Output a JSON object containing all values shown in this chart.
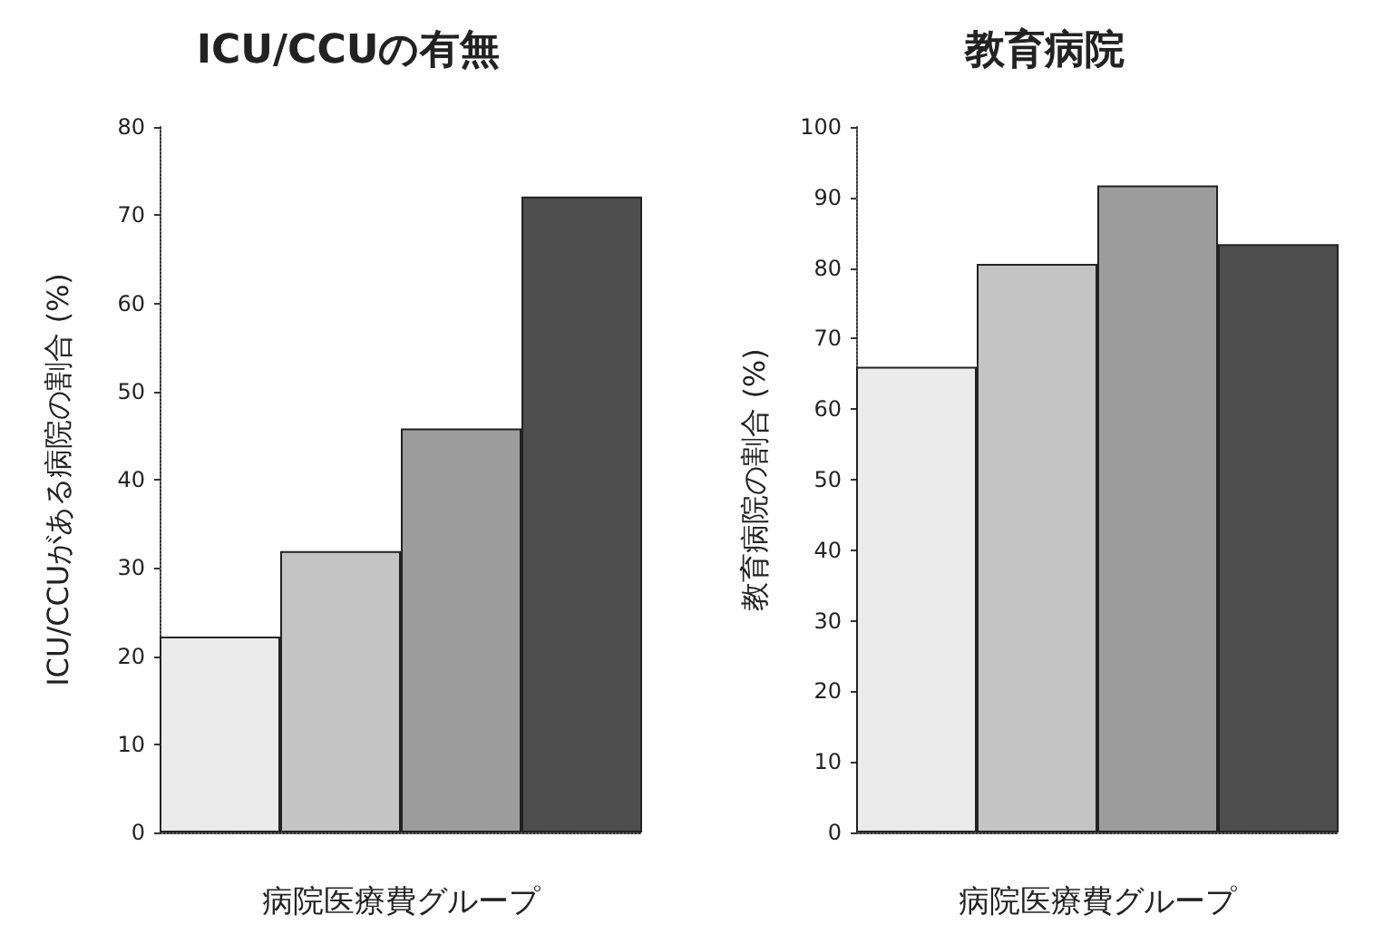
{
  "chart_data": [
    {
      "type": "bar",
      "title": "ICU/CCUの有無",
      "xlabel": "病院医療費グループ",
      "ylabel": "ICU/CCUがある病院の割合 (%)",
      "categories": [
        null,
        null,
        null,
        null
      ],
      "values": [
        22.2,
        31.9,
        45.8,
        72.1
      ],
      "colors": [
        "#ebebeb",
        "#c4c4c4",
        "#9c9c9c",
        "#4e4e4e"
      ],
      "ylim": [
        0,
        80
      ],
      "yticks": [
        0,
        10,
        20,
        30,
        40,
        50,
        60,
        70,
        80
      ],
      "grid": false
    },
    {
      "type": "bar",
      "title": "教育病院",
      "xlabel": "病院医療費グループ",
      "ylabel": "教育病院の割合 (%)",
      "categories": [
        null,
        null,
        null,
        null
      ],
      "values": [
        66.0,
        80.6,
        91.7,
        83.4
      ],
      "colors": [
        "#ebebeb",
        "#c4c4c4",
        "#9c9c9c",
        "#4e4e4e"
      ],
      "ylim": [
        0,
        100
      ],
      "yticks": [
        0,
        10,
        20,
        30,
        40,
        50,
        60,
        70,
        80,
        90,
        100
      ],
      "grid": false
    }
  ]
}
